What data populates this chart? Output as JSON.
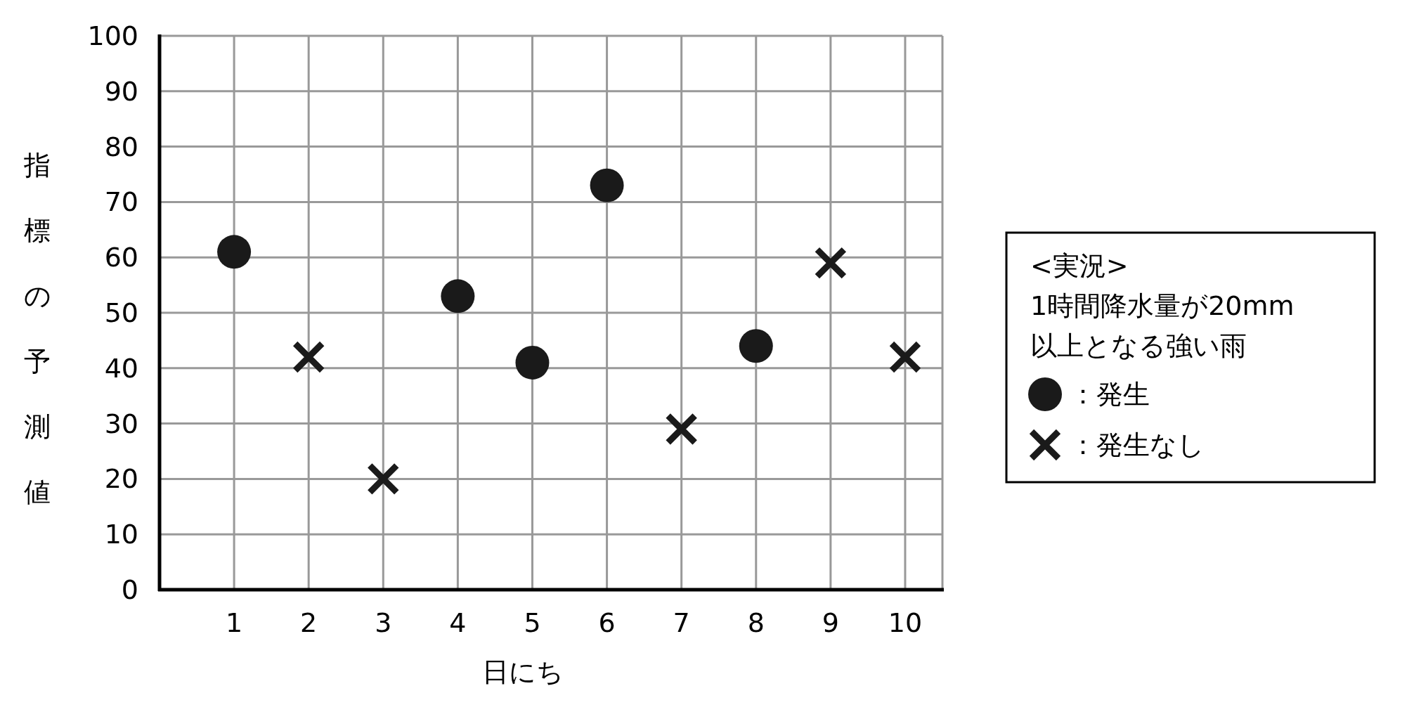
{
  "chart_data": {
    "type": "scatter",
    "xlabel": "日にち",
    "ylabel": "指標の予測値",
    "legend_title": "<実況>\n1時間降水量が20mm\n以上となる強い雨",
    "xlim": [
      0,
      10.5
    ],
    "xticks": [
      1,
      2,
      3,
      4,
      5,
      6,
      7,
      8,
      9,
      10
    ],
    "ylim": [
      0,
      100
    ],
    "yticks": [
      0,
      10,
      20,
      30,
      40,
      50,
      60,
      70,
      80,
      90,
      100
    ],
    "grid": true,
    "legend": "right",
    "series": [
      {
        "name": "：発生",
        "color": "#1a1a1a",
        "marker": "circle",
        "x": [
          1,
          4,
          5,
          6,
          8
        ],
        "values": [
          61,
          53,
          41,
          73,
          44
        ]
      },
      {
        "name": "：発生なし",
        "color": "#1a1a1a",
        "marker": "cross",
        "x": [
          2,
          3,
          7,
          9,
          10
        ],
        "values": [
          42,
          20,
          29,
          59,
          42
        ]
      }
    ]
  }
}
